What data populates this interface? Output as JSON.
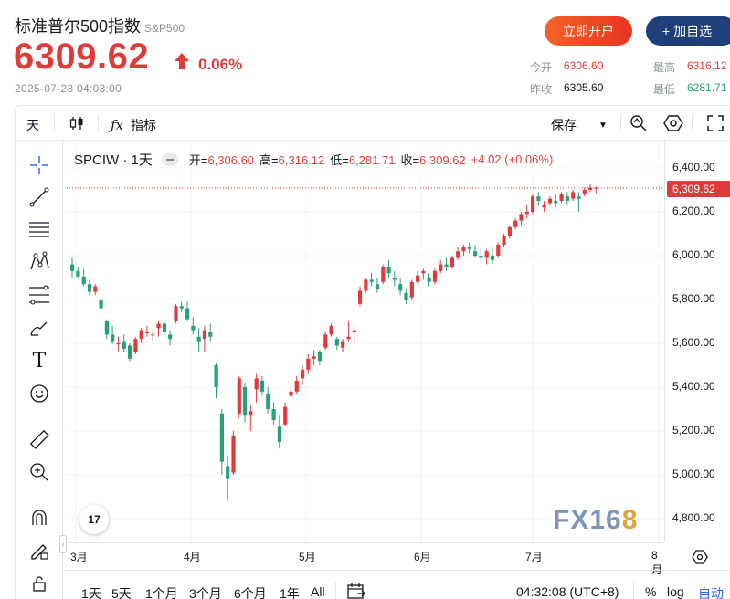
{
  "header": {
    "title": "标准普尔500指数",
    "subtitle": "S&P500",
    "price": "6309.62",
    "change_pct": "0.06%",
    "timestamp": "2025-07-23 04:03:00",
    "open_button": "立即开户",
    "watch_button": "+ 加自选"
  },
  "stats": {
    "open_label": "今开",
    "open_value": "6306.60",
    "prev_label": "昨收",
    "prev_value": "6305.60",
    "high_label": "最高",
    "high_value": "6316.12",
    "low_label": "最低",
    "low_value": "6281.71"
  },
  "toolbar": {
    "interval": "天",
    "indicators": "指标",
    "save": "保存"
  },
  "legend": {
    "symbol": "SPCIW · 1天",
    "open": "开=",
    "open_v": "6,306.60",
    "high": "高=",
    "high_v": "6,316.12",
    "low": "低=",
    "low_v": "6,281.71",
    "close": "收=",
    "close_v": "6,309.62",
    "change": "+4.02 (+0.06%)"
  },
  "price_axis": {
    "labels": [
      "6,400.00",
      "6,200.00",
      "6,000.00",
      "5,800.00",
      "5,600.00",
      "5,400.00",
      "5,200.00",
      "5,000.00",
      "4,800.00"
    ],
    "last_price": "6,309.62"
  },
  "time_axis": [
    "3月",
    "4月",
    "5月",
    "6月",
    "7月",
    "8月"
  ],
  "ranges": [
    "1天",
    "5天",
    "1个月",
    "3个月",
    "6个月",
    "1年",
    "All"
  ],
  "bottom": {
    "clock": "04:32:08 (UTC+8)",
    "pct": "%",
    "log": "log",
    "auto": "自动"
  },
  "watermark": {
    "text": "FX16",
    "accent": "8"
  },
  "tv_logo": "17",
  "colors": {
    "up": "#e03b3b",
    "down": "#26a17b",
    "accent": "#1e3f7a"
  },
  "chart_data": {
    "type": "candlestick",
    "ylim": [
      4750,
      6460
    ],
    "values": [
      [
        5960,
        5990,
        5900,
        5930
      ],
      [
        5930,
        5950,
        5900,
        5905
      ],
      [
        5905,
        5940,
        5860,
        5870
      ],
      [
        5870,
        5890,
        5820,
        5835
      ],
      [
        5835,
        5870,
        5820,
        5860
      ],
      [
        5800,
        5815,
        5740,
        5760
      ],
      [
        5700,
        5710,
        5620,
        5640
      ],
      [
        5640,
        5680,
        5595,
        5610
      ],
      [
        5600,
        5630,
        5565,
        5600
      ],
      [
        5610,
        5640,
        5560,
        5575
      ],
      [
        5590,
        5600,
        5520,
        5530
      ],
      [
        5560,
        5630,
        5550,
        5620
      ],
      [
        5620,
        5670,
        5600,
        5660
      ],
      [
        5650,
        5680,
        5630,
        5650
      ],
      [
        5640,
        5660,
        5610,
        5640
      ],
      [
        5670,
        5700,
        5630,
        5690
      ],
      [
        5690,
        5700,
        5640,
        5650
      ],
      [
        5640,
        5660,
        5590,
        5620
      ],
      [
        5700,
        5780,
        5690,
        5770
      ],
      [
        5770,
        5790,
        5740,
        5760
      ],
      [
        5760,
        5790,
        5700,
        5710
      ],
      [
        5680,
        5720,
        5640,
        5660
      ],
      [
        5630,
        5670,
        5560,
        5610
      ],
      [
        5620,
        5680,
        5560,
        5660
      ],
      [
        5650,
        5690,
        5610,
        5630
      ],
      [
        5500,
        5510,
        5350,
        5400
      ],
      [
        5280,
        5300,
        5000,
        5060
      ],
      [
        5040,
        5090,
        4880,
        4980
      ],
      [
        5010,
        5200,
        5000,
        5180
      ],
      [
        5280,
        5450,
        5260,
        5440
      ],
      [
        5400,
        5420,
        5240,
        5270
      ],
      [
        5270,
        5320,
        5200,
        5290
      ],
      [
        5390,
        5460,
        5330,
        5440
      ],
      [
        5430,
        5450,
        5360,
        5380
      ],
      [
        5370,
        5400,
        5280,
        5300
      ],
      [
        5300,
        5330,
        5230,
        5250
      ],
      [
        5220,
        5270,
        5120,
        5150
      ],
      [
        5230,
        5330,
        5220,
        5310
      ],
      [
        5360,
        5400,
        5350,
        5380
      ],
      [
        5380,
        5450,
        5370,
        5430
      ],
      [
        5440,
        5500,
        5410,
        5480
      ],
      [
        5480,
        5550,
        5460,
        5530
      ],
      [
        5530,
        5570,
        5500,
        5540
      ],
      [
        5560,
        5570,
        5500,
        5520
      ],
      [
        5580,
        5650,
        5570,
        5640
      ],
      [
        5640,
        5690,
        5630,
        5680
      ],
      [
        5620,
        5630,
        5570,
        5590
      ],
      [
        5580,
        5620,
        5560,
        5610
      ],
      [
        5620,
        5700,
        5610,
        5630
      ],
      [
        5650,
        5680,
        5600,
        5660
      ],
      [
        5780,
        5860,
        5770,
        5840
      ],
      [
        5840,
        5900,
        5830,
        5890
      ],
      [
        5890,
        5920,
        5860,
        5880
      ],
      [
        5870,
        5900,
        5830,
        5850
      ],
      [
        5880,
        5960,
        5870,
        5950
      ],
      [
        5950,
        5980,
        5900,
        5920
      ],
      [
        5900,
        5930,
        5860,
        5890
      ],
      [
        5870,
        5900,
        5820,
        5840
      ],
      [
        5830,
        5850,
        5780,
        5800
      ],
      [
        5810,
        5890,
        5800,
        5880
      ],
      [
        5880,
        5930,
        5870,
        5910
      ],
      [
        5920,
        5940,
        5890,
        5930
      ],
      [
        5900,
        5920,
        5860,
        5880
      ],
      [
        5880,
        5940,
        5870,
        5930
      ],
      [
        5930,
        5980,
        5920,
        5960
      ],
      [
        5960,
        5990,
        5930,
        5950
      ],
      [
        5950,
        6000,
        5940,
        5990
      ],
      [
        5990,
        6040,
        5980,
        6020
      ],
      [
        6020,
        6050,
        6000,
        6040
      ],
      [
        6040,
        6060,
        6010,
        6030
      ],
      [
        6020,
        6050,
        5990,
        6000
      ],
      [
        6000,
        6040,
        5970,
        5990
      ],
      [
        5990,
        6030,
        5960,
        6020
      ],
      [
        6000,
        6040,
        5960,
        5980
      ],
      [
        6000,
        6060,
        5990,
        6050
      ],
      [
        6050,
        6100,
        6040,
        6090
      ],
      [
        6090,
        6140,
        6080,
        6130
      ],
      [
        6130,
        6170,
        6120,
        6160
      ],
      [
        6160,
        6200,
        6140,
        6190
      ],
      [
        6190,
        6230,
        6170,
        6200
      ],
      [
        6200,
        6280,
        6190,
        6270
      ],
      [
        6270,
        6290,
        6230,
        6250
      ],
      [
        6220,
        6250,
        6200,
        6230
      ],
      [
        6240,
        6270,
        6230,
        6260
      ],
      [
        6250,
        6280,
        6220,
        6240
      ],
      [
        6250,
        6290,
        6240,
        6280
      ],
      [
        6270,
        6290,
        6230,
        6250
      ],
      [
        6260,
        6300,
        6250,
        6290
      ],
      [
        6270,
        6290,
        6200,
        6260
      ],
      [
        6280,
        6310,
        6270,
        6300
      ],
      [
        6300,
        6330,
        6290,
        6310
      ],
      [
        6306.6,
        6316.12,
        6281.71,
        6309.62
      ]
    ]
  }
}
